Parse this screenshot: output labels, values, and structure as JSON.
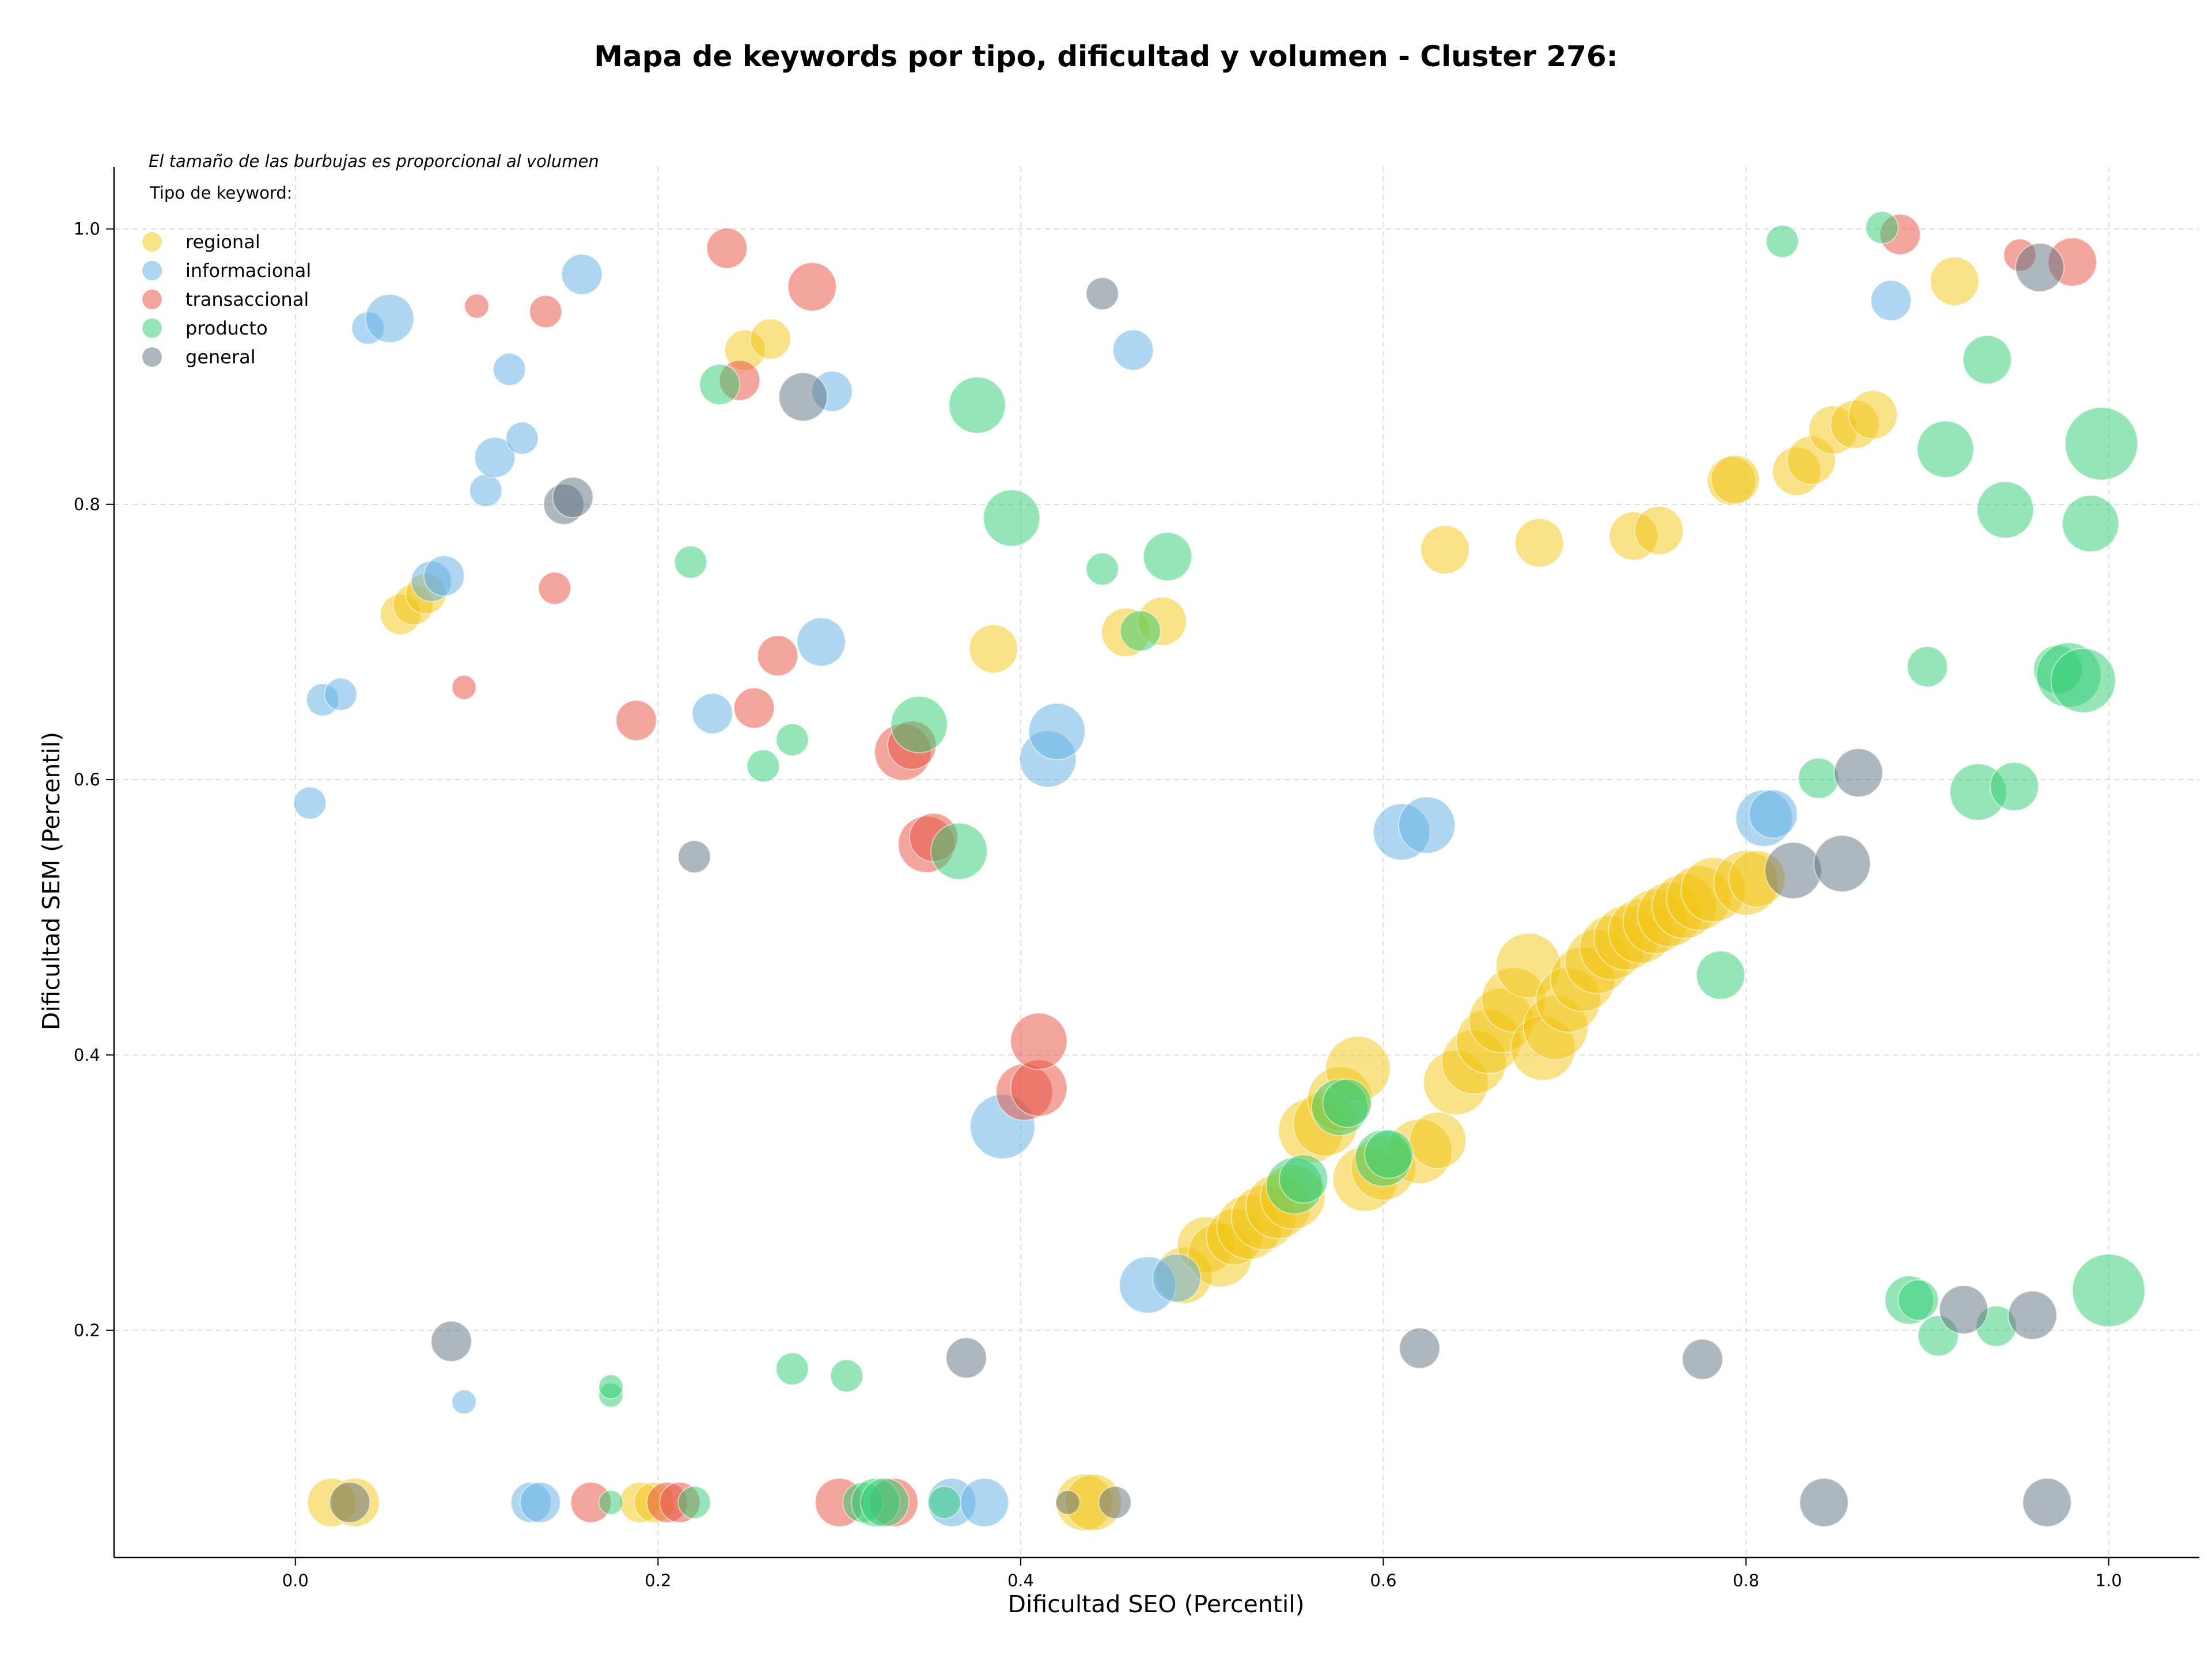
{
  "chart_data": {
    "type": "scatter",
    "title": "Mapa de keywords por tipo, dificultad y volumen - Cluster 276:",
    "xlabel": "Dificultad SEO (Percentil)",
    "ylabel": "Dificultad SEM (Percentil)",
    "xlim": [
      -0.1,
      1.05
    ],
    "ylim": [
      0.035,
      1.045
    ],
    "x_ticks": [
      "0.0",
      "0.2",
      "0.4",
      "0.6",
      "0.8",
      "1.0"
    ],
    "y_ticks": [
      "0.2",
      "0.4",
      "0.6",
      "0.8",
      "1.0"
    ],
    "grid": true,
    "annotation": "El tamaño de las burbujas es proporcional al volumen",
    "legend": {
      "title": "Tipo de keyword:",
      "placement": "top-left"
    },
    "series": [
      {
        "name": "regional",
        "color": "#f1c40f",
        "points": [
          [
            0.02,
            0.075,
            4
          ],
          [
            0.033,
            0.075,
            4
          ],
          [
            0.058,
            0.72,
            3
          ],
          [
            0.065,
            0.727,
            3
          ],
          [
            0.072,
            0.735,
            3
          ],
          [
            0.19,
            0.075,
            3
          ],
          [
            0.198,
            0.075,
            3
          ],
          [
            0.248,
            0.912,
            3
          ],
          [
            0.262,
            0.92,
            3
          ],
          [
            0.385,
            0.695,
            4
          ],
          [
            0.435,
            0.075,
            5
          ],
          [
            0.44,
            0.075,
            5
          ],
          [
            0.458,
            0.707,
            4
          ],
          [
            0.478,
            0.715,
            4
          ],
          [
            0.49,
            0.24,
            5
          ],
          [
            0.502,
            0.262,
            5
          ],
          [
            0.51,
            0.255,
            6
          ],
          [
            0.518,
            0.268,
            5
          ],
          [
            0.526,
            0.275,
            6
          ],
          [
            0.534,
            0.282,
            6
          ],
          [
            0.542,
            0.29,
            6
          ],
          [
            0.55,
            0.297,
            6
          ],
          [
            0.56,
            0.345,
            6
          ],
          [
            0.568,
            0.35,
            6
          ],
          [
            0.576,
            0.368,
            6
          ],
          [
            0.586,
            0.39,
            6
          ],
          [
            0.59,
            0.31,
            6
          ],
          [
            0.6,
            0.318,
            6
          ],
          [
            0.62,
            0.33,
            6
          ],
          [
            0.63,
            0.338,
            5
          ],
          [
            0.634,
            0.767,
            4
          ],
          [
            0.64,
            0.38,
            6
          ],
          [
            0.65,
            0.395,
            6
          ],
          [
            0.658,
            0.41,
            6
          ],
          [
            0.665,
            0.425,
            6
          ],
          [
            0.672,
            0.44,
            6
          ],
          [
            0.68,
            0.465,
            6
          ],
          [
            0.688,
            0.405,
            6
          ],
          [
            0.695,
            0.42,
            6
          ],
          [
            0.686,
            0.772,
            4
          ],
          [
            0.702,
            0.44,
            6
          ],
          [
            0.71,
            0.455,
            6
          ],
          [
            0.718,
            0.468,
            6
          ],
          [
            0.726,
            0.478,
            6
          ],
          [
            0.734,
            0.485,
            6
          ],
          [
            0.742,
            0.49,
            6
          ],
          [
            0.738,
            0.777,
            4
          ],
          [
            0.752,
            0.781,
            4
          ],
          [
            0.75,
            0.497,
            6
          ],
          [
            0.758,
            0.502,
            6
          ],
          [
            0.766,
            0.508,
            6
          ],
          [
            0.774,
            0.514,
            6
          ],
          [
            0.782,
            0.52,
            6
          ],
          [
            0.8,
            0.525,
            6
          ],
          [
            0.806,
            0.528,
            5
          ],
          [
            0.792,
            0.817,
            4
          ],
          [
            0.794,
            0.818,
            4
          ],
          [
            0.828,
            0.824,
            4
          ],
          [
            0.836,
            0.832,
            4
          ],
          [
            0.848,
            0.854,
            4
          ],
          [
            0.86,
            0.858,
            4
          ],
          [
            0.87,
            0.865,
            4
          ],
          [
            0.915,
            0.962,
            4
          ]
        ]
      },
      {
        "name": "informacional",
        "color": "#5dade2",
        "points": [
          [
            0.008,
            0.583,
            2
          ],
          [
            0.015,
            0.658,
            2
          ],
          [
            0.025,
            0.662,
            2
          ],
          [
            0.04,
            0.928,
            2
          ],
          [
            0.052,
            0.935,
            4
          ],
          [
            0.075,
            0.744,
            3
          ],
          [
            0.082,
            0.748,
            3
          ],
          [
            0.093,
            0.148,
            1
          ],
          [
            0.105,
            0.81,
            2
          ],
          [
            0.11,
            0.834,
            3
          ],
          [
            0.118,
            0.898,
            2
          ],
          [
            0.125,
            0.848,
            2
          ],
          [
            0.13,
            0.075,
            3
          ],
          [
            0.135,
            0.075,
            3
          ],
          [
            0.158,
            0.967,
            3
          ],
          [
            0.23,
            0.648,
            3
          ],
          [
            0.29,
            0.7,
            4
          ],
          [
            0.296,
            0.882,
            3
          ],
          [
            0.362,
            0.075,
            4
          ],
          [
            0.38,
            0.075,
            4
          ],
          [
            0.39,
            0.348,
            6
          ],
          [
            0.415,
            0.615,
            5
          ],
          [
            0.42,
            0.635,
            5
          ],
          [
            0.462,
            0.912,
            3
          ],
          [
            0.47,
            0.233,
            5
          ],
          [
            0.486,
            0.238,
            4
          ],
          [
            0.61,
            0.562,
            5
          ],
          [
            0.624,
            0.567,
            5
          ],
          [
            0.81,
            0.572,
            5
          ],
          [
            0.815,
            0.575,
            4
          ],
          [
            0.88,
            0.948,
            3
          ]
        ]
      },
      {
        "name": "transaccional",
        "color": "#e74c3c",
        "points": [
          [
            0.093,
            0.667,
            1
          ],
          [
            0.1,
            0.944,
            1
          ],
          [
            0.138,
            0.94,
            2
          ],
          [
            0.143,
            0.739,
            2
          ],
          [
            0.163,
            0.075,
            3
          ],
          [
            0.188,
            0.643,
            3
          ],
          [
            0.205,
            0.075,
            3
          ],
          [
            0.212,
            0.075,
            3
          ],
          [
            0.238,
            0.986,
            3
          ],
          [
            0.245,
            0.89,
            3
          ],
          [
            0.253,
            0.652,
            3
          ],
          [
            0.266,
            0.69,
            3
          ],
          [
            0.285,
            0.958,
            4
          ],
          [
            0.3,
            0.075,
            4
          ],
          [
            0.33,
            0.075,
            4
          ],
          [
            0.335,
            0.62,
            5
          ],
          [
            0.34,
            0.625,
            4
          ],
          [
            0.348,
            0.553,
            5
          ],
          [
            0.352,
            0.558,
            4
          ],
          [
            0.402,
            0.373,
            5
          ],
          [
            0.41,
            0.376,
            5
          ],
          [
            0.41,
            0.41,
            5
          ],
          [
            0.885,
            0.996,
            3
          ],
          [
            0.951,
            0.981,
            2
          ],
          [
            0.98,
            0.976,
            4
          ]
        ]
      },
      {
        "name": "producto",
        "color": "#2ecc71",
        "points": [
          [
            0.174,
            0.075,
            1
          ],
          [
            0.174,
            0.153,
            1
          ],
          [
            0.174,
            0.159,
            1
          ],
          [
            0.218,
            0.758,
            2
          ],
          [
            0.22,
            0.075,
            2
          ],
          [
            0.234,
            0.887,
            3
          ],
          [
            0.258,
            0.61,
            2
          ],
          [
            0.274,
            0.629,
            2
          ],
          [
            0.274,
            0.172,
            2
          ],
          [
            0.304,
            0.167,
            2
          ],
          [
            0.313,
            0.075,
            3
          ],
          [
            0.32,
            0.075,
            4
          ],
          [
            0.325,
            0.075,
            4
          ],
          [
            0.344,
            0.64,
            5
          ],
          [
            0.358,
            0.075,
            2
          ],
          [
            0.366,
            0.548,
            5
          ],
          [
            0.376,
            0.872,
            5
          ],
          [
            0.395,
            0.79,
            5
          ],
          [
            0.445,
            0.753,
            2
          ],
          [
            0.466,
            0.708,
            3
          ],
          [
            0.481,
            0.762,
            4
          ],
          [
            0.551,
            0.305,
            5
          ],
          [
            0.556,
            0.31,
            4
          ],
          [
            0.576,
            0.362,
            5
          ],
          [
            0.58,
            0.365,
            4
          ],
          [
            0.6,
            0.325,
            5
          ],
          [
            0.603,
            0.328,
            4
          ],
          [
            0.786,
            0.458,
            4
          ],
          [
            0.82,
            0.991,
            2
          ],
          [
            0.84,
            0.601,
            3
          ],
          [
            0.875,
            1.001,
            2
          ],
          [
            0.89,
            0.222,
            4
          ],
          [
            0.895,
            0.222,
            3
          ],
          [
            0.9,
            0.682,
            3
          ],
          [
            0.906,
            0.196,
            3
          ],
          [
            0.91,
            0.84,
            5
          ],
          [
            0.928,
            0.591,
            5
          ],
          [
            0.933,
            0.905,
            4
          ],
          [
            0.938,
            0.203,
            3
          ],
          [
            0.943,
            0.796,
            5
          ],
          [
            0.948,
            0.595,
            4
          ],
          [
            0.972,
            0.68,
            4
          ],
          [
            0.978,
            0.676,
            6
          ],
          [
            0.986,
            0.672,
            6
          ],
          [
            0.99,
            0.786,
            5
          ],
          [
            0.996,
            0.844,
            7
          ],
          [
            1.0,
            0.229,
            7
          ]
        ]
      },
      {
        "name": "general",
        "color": "#5d6d7e",
        "points": [
          [
            0.03,
            0.075,
            3
          ],
          [
            0.086,
            0.192,
            3
          ],
          [
            0.148,
            0.8,
            3
          ],
          [
            0.153,
            0.805,
            3
          ],
          [
            0.22,
            0.544,
            2
          ],
          [
            0.28,
            0.878,
            4
          ],
          [
            0.37,
            0.18,
            3
          ],
          [
            0.426,
            0.075,
            1
          ],
          [
            0.445,
            0.953,
            2
          ],
          [
            0.452,
            0.075,
            2
          ],
          [
            0.62,
            0.187,
            3
          ],
          [
            0.776,
            0.179,
            3
          ],
          [
            0.826,
            0.534,
            5
          ],
          [
            0.843,
            0.075,
            4
          ],
          [
            0.853,
            0.539,
            5
          ],
          [
            0.862,
            0.605,
            4
          ],
          [
            0.92,
            0.215,
            4
          ],
          [
            0.958,
            0.211,
            4
          ],
          [
            0.962,
            0.972,
            4
          ],
          [
            0.966,
            0.075,
            4
          ]
        ]
      }
    ]
  }
}
